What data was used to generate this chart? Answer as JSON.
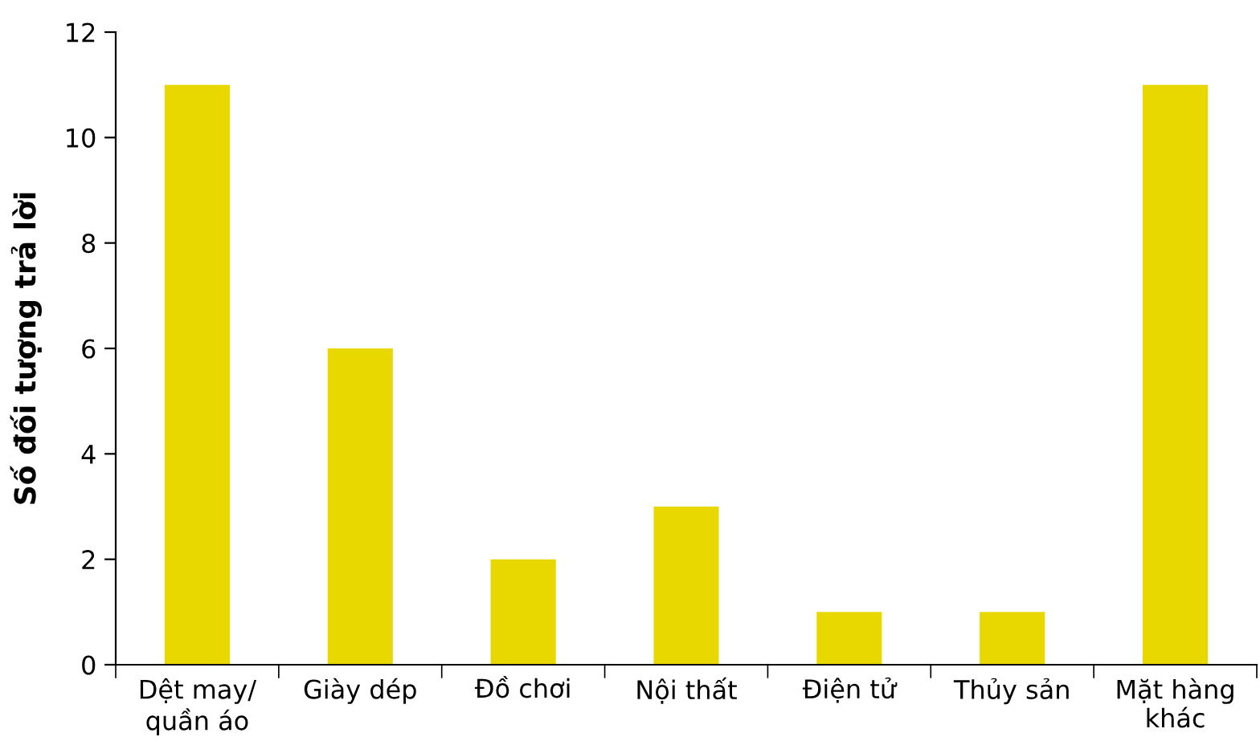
{
  "chart_data": {
    "type": "bar",
    "ylabel": "Số đối tượng trả lời",
    "categories": [
      "Dệt may/\nquần áo",
      "Giày dép",
      "Đồ chơi",
      "Nội thất",
      "Điện tử",
      "Thủy sản",
      "Mặt hàng\nkhác"
    ],
    "values": [
      11,
      6,
      2,
      3,
      1,
      1,
      11
    ],
    "color": "#e8d800",
    "ylim": [
      0,
      12
    ],
    "yticks": [
      0,
      2,
      4,
      6,
      8,
      10,
      12
    ],
    "grid": false
  }
}
